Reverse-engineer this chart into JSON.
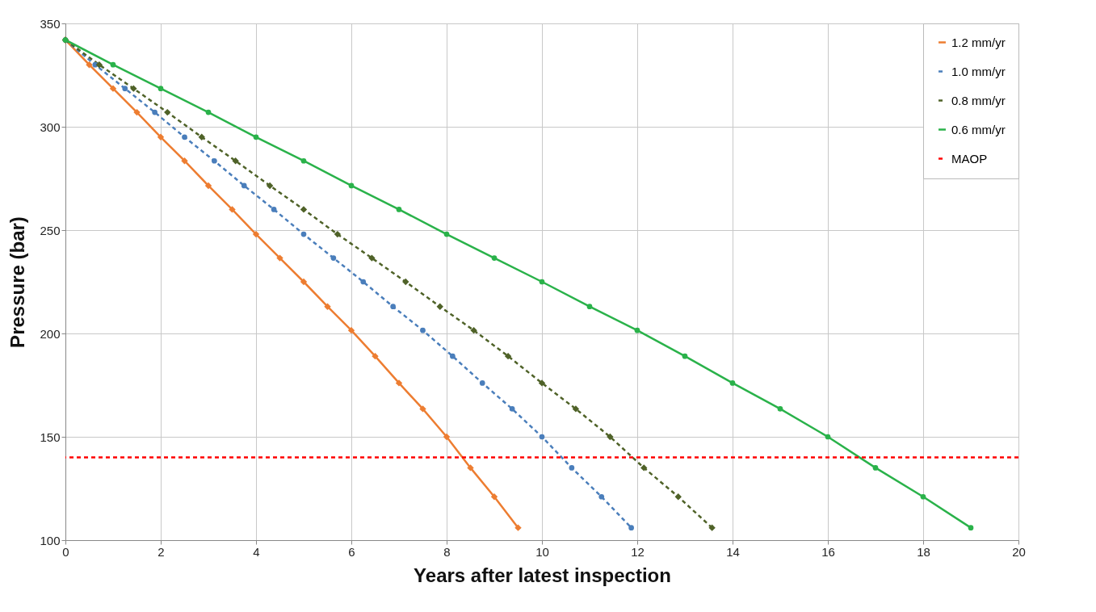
{
  "chart_data": {
    "type": "line",
    "xlabel": "Years after latest inspection",
    "ylabel": "Pressure (bar)",
    "xlim": [
      0,
      20
    ],
    "xticks": [
      0,
      2,
      4,
      6,
      8,
      10,
      12,
      14,
      16,
      18,
      20
    ],
    "ylim": [
      100,
      350
    ],
    "yticks": [
      100,
      150,
      200,
      250,
      300,
      350
    ],
    "grid": true,
    "legend": "top right",
    "series": [
      {
        "name": "1.2 mm/yr",
        "color": "#ed7d31",
        "marker": "diamond",
        "line_style": "solid",
        "x": [
          0,
          0.5,
          1,
          1.5,
          2,
          2.5,
          3,
          3.5,
          4,
          4.5,
          5,
          5.5,
          6,
          6.5,
          7,
          7.5,
          8,
          8.5,
          9,
          9.5
        ],
        "values": [
          342,
          330,
          318.5,
          307,
          295,
          283.5,
          271.5,
          260,
          248,
          236.5,
          225,
          213,
          201.5,
          189,
          176,
          163.5,
          150,
          135,
          121,
          106
        ]
      },
      {
        "name": "1.0 mm/yr",
        "color": "#4a7ebb",
        "marker": "circle",
        "line_style": "dashed",
        "x": [
          0,
          0.625,
          1.25,
          1.875,
          2.5,
          3.125,
          3.75,
          4.375,
          5,
          5.625,
          6.25,
          6.875,
          7.5,
          8.125,
          8.75,
          9.375,
          10,
          10.625,
          11.25,
          11.875
        ],
        "values": [
          342,
          330,
          318.5,
          307,
          295,
          283.5,
          271.5,
          260,
          248,
          236.5,
          225,
          213,
          201.5,
          189,
          176,
          163.5,
          150,
          135,
          121,
          106
        ]
      },
      {
        "name": "0.8 mm/yr",
        "color": "#4f6228",
        "marker": "diamond",
        "line_style": "dashed",
        "x": [
          0,
          0.71,
          1.43,
          2.14,
          2.86,
          3.57,
          4.29,
          5,
          5.71,
          6.43,
          7.14,
          7.86,
          8.57,
          9.29,
          10,
          10.71,
          11.43,
          12.14,
          12.86,
          13.57
        ],
        "values": [
          342,
          330,
          318.5,
          307,
          295,
          283.5,
          271.5,
          260,
          248,
          236.5,
          225,
          213,
          201.5,
          189,
          176,
          163.5,
          150,
          135,
          121,
          106
        ]
      },
      {
        "name": "0.6 mm/yr",
        "color": "#2ab24a",
        "marker": "circle",
        "line_style": "solid",
        "x": [
          0,
          1,
          2,
          3,
          4,
          5,
          6,
          7,
          8,
          9,
          10,
          11,
          12,
          13,
          14,
          15,
          16,
          17,
          18,
          19
        ],
        "values": [
          342,
          330,
          318.5,
          307,
          295,
          283.5,
          271.5,
          260,
          248,
          236.5,
          225,
          213,
          201.5,
          189,
          176,
          163.5,
          150,
          135,
          121,
          106
        ]
      }
    ],
    "ref_lines": [
      {
        "axis": "y",
        "value": 140,
        "label": "MAOP",
        "color": "#ff0000",
        "line_style": "dashed"
      }
    ]
  }
}
